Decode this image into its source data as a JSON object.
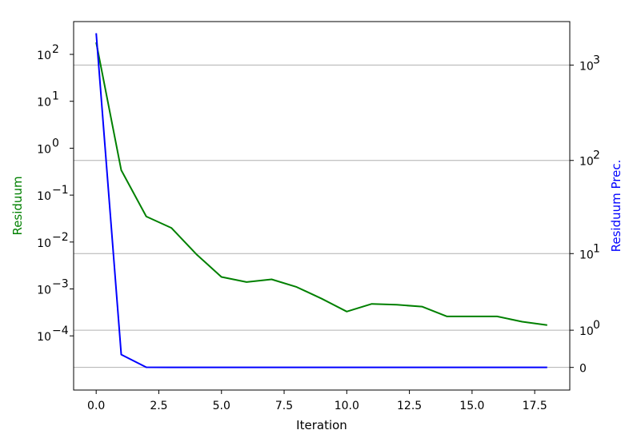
{
  "chart_data": {
    "type": "line",
    "xlabel": "Iteration",
    "ylabel": "Residuum",
    "ylabel_right": "Residuum Prec.",
    "xlim": [
      -0.9,
      18.9
    ],
    "ylim": [
      7e-06,
      500
    ],
    "y_scale": "log",
    "ylim_right": [
      -0.5,
      2850
    ],
    "y_scale_right": "symlog",
    "grid": "horizontal lines at right-axis ticks",
    "x_ticks": [
      {
        "value": 0,
        "label": "0.0"
      },
      {
        "value": 2.5,
        "label": "2.5"
      },
      {
        "value": 5,
        "label": "5.0"
      },
      {
        "value": 7.5,
        "label": "7.5"
      },
      {
        "value": 10,
        "label": "10.0"
      },
      {
        "value": 12.5,
        "label": "12.5"
      },
      {
        "value": 15,
        "label": "15.0"
      },
      {
        "value": 17.5,
        "label": "17.5"
      }
    ],
    "y_ticks_left": [
      {
        "exp": 2,
        "base": "10",
        "sup": "2"
      },
      {
        "exp": 1,
        "base": "10",
        "sup": "1"
      },
      {
        "exp": 0,
        "base": "10",
        "sup": "0"
      },
      {
        "exp": -1,
        "base": "10",
        "sup": "−1"
      },
      {
        "exp": -2,
        "base": "10",
        "sup": "−2"
      },
      {
        "exp": -3,
        "base": "10",
        "sup": "−3"
      },
      {
        "exp": -4,
        "base": "10",
        "sup": "−4"
      }
    ],
    "y_ticks_right": [
      {
        "value": 1000,
        "base": "10",
        "sup": "3"
      },
      {
        "value": 100,
        "base": "10",
        "sup": "2"
      },
      {
        "value": 10,
        "base": "10",
        "sup": "1"
      },
      {
        "value": 1,
        "base": "10",
        "sup": "0"
      },
      {
        "value": 0,
        "base": "0",
        "sup": ""
      }
    ],
    "series": [
      {
        "axis": "left",
        "color": "#008000",
        "x": [
          0,
          1,
          2,
          3,
          4,
          5,
          6,
          7,
          8,
          9,
          10,
          11,
          12,
          13,
          14,
          15,
          16,
          17,
          18
        ],
        "y": [
          180,
          0.34,
          0.035,
          0.02,
          0.0055,
          0.0018,
          0.0014,
          0.0016,
          0.0011,
          0.00062,
          0.00033,
          0.00048,
          0.00046,
          0.00042,
          0.00026,
          0.00026,
          0.00026,
          0.0002,
          0.00017
        ]
      },
      {
        "axis": "right",
        "color": "#0000ff",
        "x": [
          0,
          1,
          2,
          3,
          4,
          5,
          6,
          7,
          8,
          9,
          10,
          11,
          12,
          13,
          14,
          15,
          16,
          17,
          18
        ],
        "y": [
          2150,
          0.25,
          0.002,
          0.001,
          0.0008,
          0.0007,
          0.0007,
          0.0007,
          0.0007,
          0.0007,
          0.0007,
          0.0007,
          0.0007,
          0.0007,
          0.0007,
          0.0007,
          0.0007,
          0.0007,
          0.0007
        ]
      }
    ]
  }
}
